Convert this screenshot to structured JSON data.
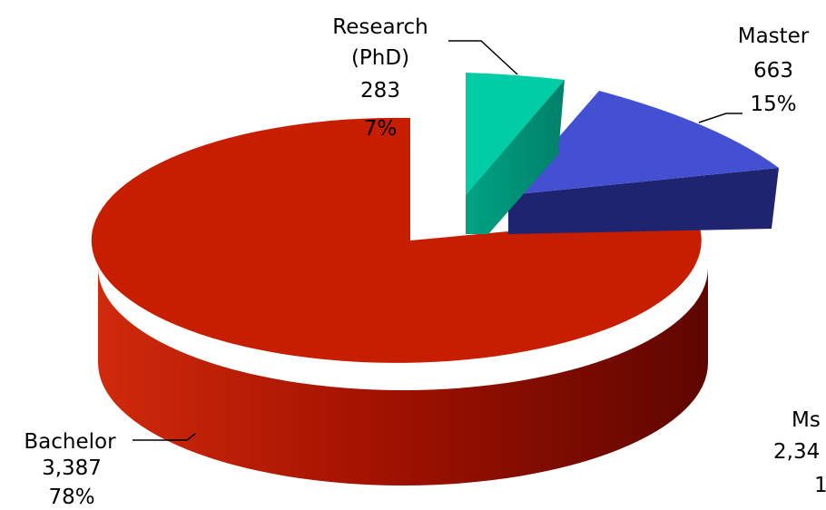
{
  "chart_data": {
    "type": "pie",
    "title": "",
    "slices": [
      {
        "label": "Bachelor",
        "value": 3387,
        "percent": 78,
        "value_text": "3,387",
        "percent_text": "78%",
        "color": "#c81e00",
        "exploded": false
      },
      {
        "label": "Research (PhD)",
        "label_lines": [
          "Research",
          "(PhD)"
        ],
        "value": 283,
        "percent": 7,
        "value_text": "283",
        "percent_text": "7%",
        "color": "#00cca6",
        "exploded": true
      },
      {
        "label": "Master",
        "value": 663,
        "percent": 15,
        "value_text": "663",
        "percent_text": "15%",
        "color": "#4450d2",
        "exploded": true
      }
    ],
    "partial_label": {
      "lines": [
        "Ms",
        "2,34",
        "1"
      ]
    },
    "style": "3d",
    "legend": "none"
  }
}
